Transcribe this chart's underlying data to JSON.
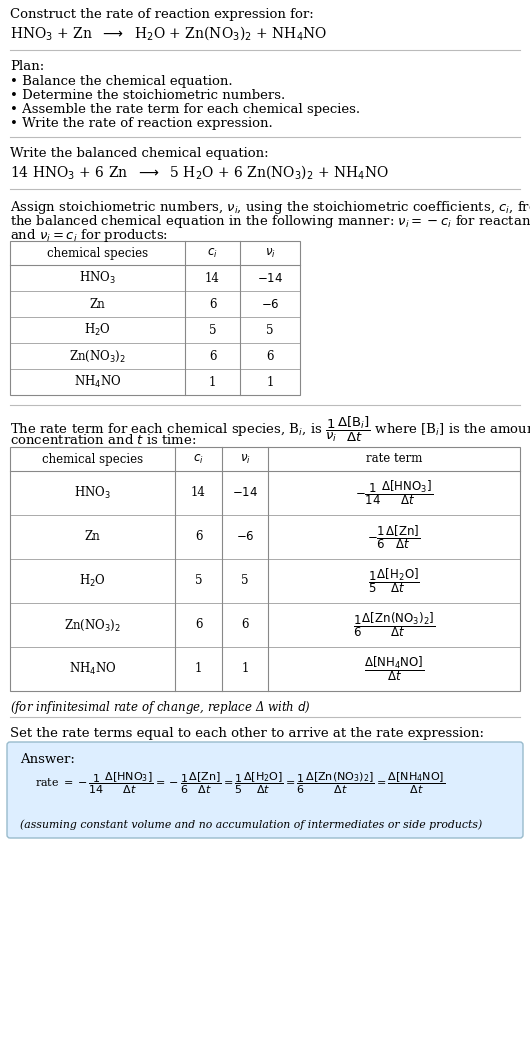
{
  "title_line1": "Construct the rate of reaction expression for:",
  "title_line2": "HNO$_3$ + Zn  $\\longrightarrow$  H$_2$O + Zn(NO$_3$)$_2$ + NH$_4$NO",
  "plan_header": "Plan:",
  "plan_items": [
    "• Balance the chemical equation.",
    "• Determine the stoichiometric numbers.",
    "• Assemble the rate term for each chemical species.",
    "• Write the rate of reaction expression."
  ],
  "balanced_header": "Write the balanced chemical equation:",
  "balanced_eq": "14 HNO$_3$ + 6 Zn  $\\longrightarrow$  5 H$_2$O + 6 Zn(NO$_3$)$_2$ + NH$_4$NO",
  "stoich_intro": "Assign stoichiometric numbers, $\\nu_i$, using the stoichiometric coefficients, $c_i$, from",
  "stoich_intro2": "the balanced chemical equation in the following manner: $\\nu_i = -c_i$ for reactants",
  "stoich_intro3": "and $\\nu_i = c_i$ for products:",
  "table1_headers": [
    "chemical species",
    "$c_i$",
    "$\\nu_i$"
  ],
  "table1_rows": [
    [
      "HNO$_3$",
      "14",
      "$-14$"
    ],
    [
      "Zn",
      "6",
      "$-6$"
    ],
    [
      "H$_2$O",
      "5",
      "5"
    ],
    [
      "Zn(NO$_3$)$_2$",
      "6",
      "6"
    ],
    [
      "NH$_4$NO",
      "1",
      "1"
    ]
  ],
  "rate_intro1": "The rate term for each chemical species, B$_i$, is $\\dfrac{1}{\\nu_i}\\dfrac{\\Delta[\\mathrm{B}_i]}{\\Delta t}$ where [B$_i$] is the amount",
  "rate_intro2": "concentration and $t$ is time:",
  "table2_headers": [
    "chemical species",
    "$c_i$",
    "$\\nu_i$",
    "rate term"
  ],
  "table2_rows": [
    [
      "HNO$_3$",
      "14",
      "$-14$",
      "$-\\dfrac{1}{14}\\dfrac{\\Delta[\\mathrm{HNO_3}]}{\\Delta t}$"
    ],
    [
      "Zn",
      "6",
      "$-6$",
      "$-\\dfrac{1}{6}\\dfrac{\\Delta[\\mathrm{Zn}]}{\\Delta t}$"
    ],
    [
      "H$_2$O",
      "5",
      "5",
      "$\\dfrac{1}{5}\\dfrac{\\Delta[\\mathrm{H_2O}]}{\\Delta t}$"
    ],
    [
      "Zn(NO$_3$)$_2$",
      "6",
      "6",
      "$\\dfrac{1}{6}\\dfrac{\\Delta[\\mathrm{Zn(NO_3)_2}]}{\\Delta t}$"
    ],
    [
      "NH$_4$NO",
      "1",
      "1",
      "$\\dfrac{\\Delta[\\mathrm{NH_4NO}]}{\\Delta t}$"
    ]
  ],
  "infinitesimal_note": "(for infinitesimal rate of change, replace Δ with $d$)",
  "set_equal_header": "Set the rate terms equal to each other to arrive at the rate expression:",
  "answer_label": "Answer:",
  "rate_expr1": "rate $= -\\dfrac{1}{14}\\dfrac{\\Delta[\\mathrm{HNO_3}]}{\\Delta t} = -\\dfrac{1}{6}\\dfrac{\\Delta[\\mathrm{Zn}]}{\\Delta t} = \\dfrac{1}{5}\\dfrac{\\Delta[\\mathrm{H_2O}]}{\\Delta t} = \\dfrac{1}{6}\\dfrac{\\Delta[\\mathrm{Zn(NO_3)_2}]}{\\Delta t} = \\dfrac{\\Delta[\\mathrm{NH_4NO}]}{\\Delta t}$",
  "assuming_note": "(assuming constant volume and no accumulation of intermediates or side products)",
  "bg_color": "#ffffff",
  "answer_bg_color": "#ddeeff",
  "table_line_color": "#888888",
  "sep_line_color": "#bbbbbb",
  "text_color": "#000000",
  "answer_border_color": "#99bbcc"
}
